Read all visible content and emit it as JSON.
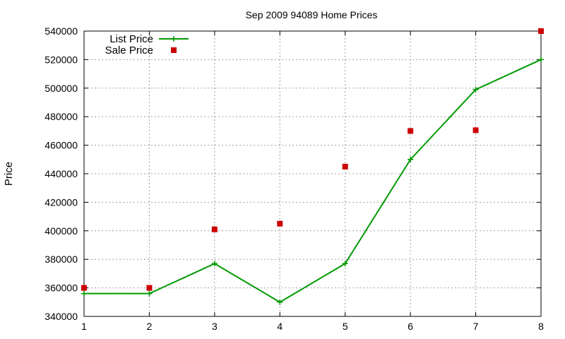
{
  "chart_data": {
    "type": "line",
    "title": "Sep 2009 94089 Home Prices",
    "xlabel": "",
    "ylabel": "Price",
    "xlim": [
      1,
      8
    ],
    "ylim": [
      340000,
      540000
    ],
    "x_ticks": [
      1,
      2,
      3,
      4,
      5,
      6,
      7,
      8
    ],
    "y_ticks": [
      340000,
      360000,
      380000,
      400000,
      420000,
      440000,
      460000,
      480000,
      500000,
      520000,
      540000
    ],
    "grid": true,
    "legend_position": "top-left",
    "series": [
      {
        "name": "List Price",
        "style": "line-with-plus-markers",
        "color": "#009900",
        "x": [
          1,
          2,
          3,
          4,
          5,
          6,
          7,
          8
        ],
        "values": [
          356000,
          356000,
          377000,
          350000,
          377000,
          450000,
          499000,
          520000
        ]
      },
      {
        "name": "Sale Price",
        "style": "square-markers",
        "color": "#cc0000",
        "x": [
          1,
          2,
          3,
          4,
          5,
          6,
          7,
          8
        ],
        "values": [
          360000,
          360000,
          401000,
          405000,
          445000,
          470000,
          470500,
          540000
        ]
      }
    ]
  }
}
